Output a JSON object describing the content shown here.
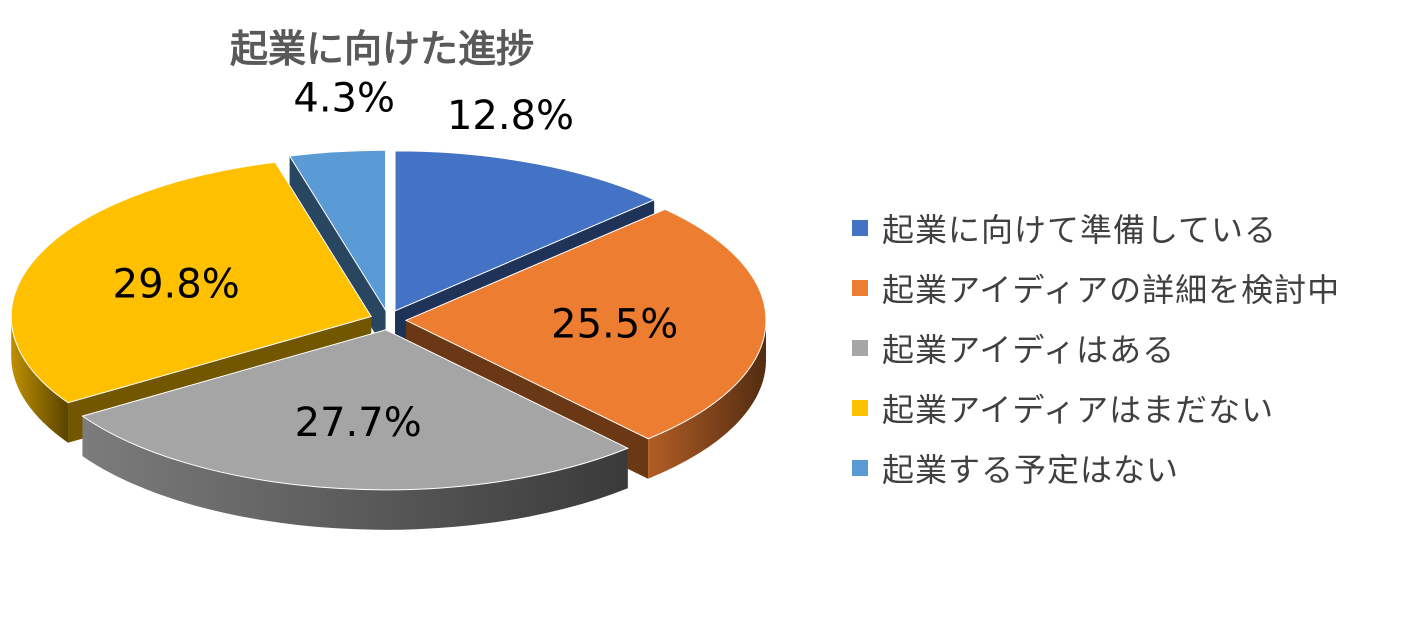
{
  "chart_data": {
    "type": "pie",
    "variant": "3d-exploded",
    "title": "起業に向けた進捗",
    "categories": [
      "起業に向けて準備している",
      "起業アイディアの詳細を検討中",
      "起業アイディはある",
      "起業アイディアはまだない",
      "起業する予定はない"
    ],
    "values": [
      12.8,
      25.5,
      27.7,
      29.8,
      4.3
    ],
    "labels": [
      "12.8%",
      "25.5%",
      "27.7%",
      "29.8%",
      "4.3%"
    ],
    "colors": [
      "#4472C4",
      "#ED7D31",
      "#A5A5A5",
      "#FFC000",
      "#5B9BD5"
    ],
    "legend_position": "right"
  }
}
